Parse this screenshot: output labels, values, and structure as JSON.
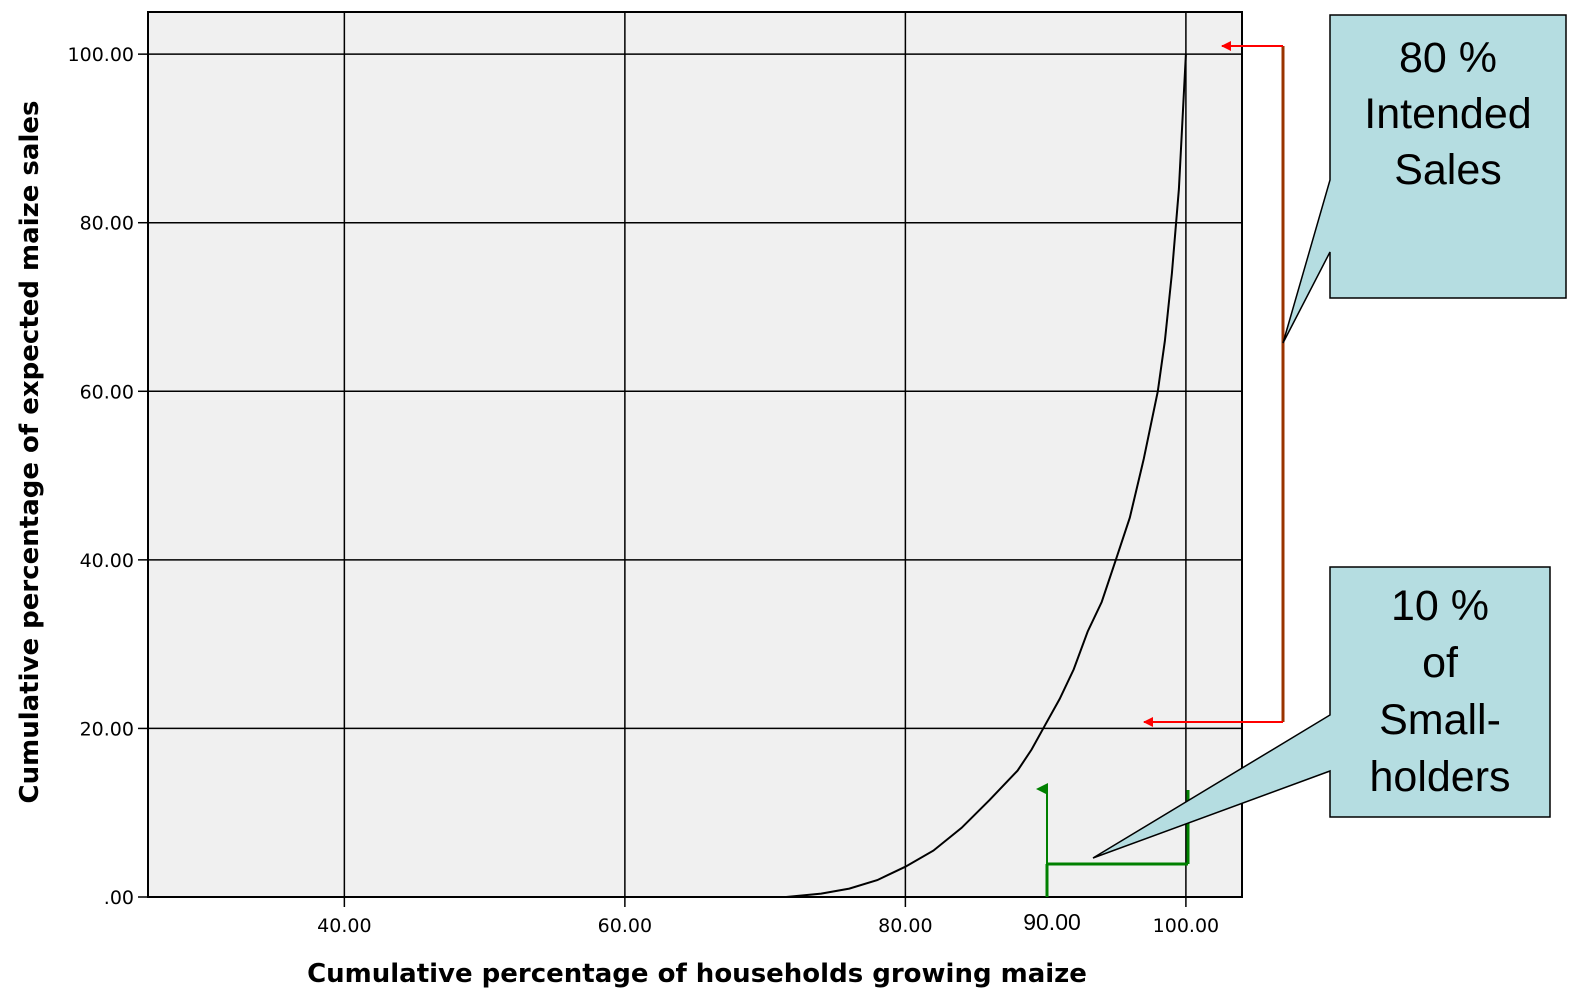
{
  "chart_data": {
    "type": "line",
    "xlabel": "Cumulative percentage of households growing maize",
    "ylabel": "Cumulative percentage of expected maize sales",
    "xlim": [
      26,
      104
    ],
    "ylim": [
      0,
      105
    ],
    "x_ticks": [
      40,
      60,
      80,
      100
    ],
    "x_tick_labels": [
      "40.00",
      "60.00",
      "80.00",
      "100.00"
    ],
    "y_ticks": [
      0,
      20,
      40,
      60,
      80,
      100
    ],
    "y_tick_labels": [
      ".00",
      "20.00",
      "40.00",
      "60.00",
      "80.00",
      "100.00"
    ],
    "grid": true,
    "series": [
      {
        "x": [
          71.5,
          74,
          76,
          78,
          80,
          82,
          84,
          86,
          88,
          89,
          90,
          91,
          92,
          93,
          94,
          95,
          96,
          97,
          98,
          98.5,
          99,
          99.5,
          100
        ],
        "y": [
          0,
          0.4,
          1,
          2,
          3.6,
          5.5,
          8.2,
          11.5,
          15,
          17.5,
          20.5,
          23.5,
          27,
          31.5,
          35,
          40,
          45,
          52,
          60,
          66,
          74,
          84,
          100
        ]
      }
    ],
    "annotations": [
      {
        "text_lines": [
          "80 %",
          "Intended",
          "Sales"
        ],
        "bracket_y": [
          20,
          100
        ]
      },
      {
        "text_lines": [
          "10 %",
          "of",
          "Small-",
          "holders"
        ],
        "bracket_x": [
          90,
          100
        ]
      }
    ],
    "extra_x_tick": {
      "value": 90,
      "label": "90.00"
    }
  },
  "colors": {
    "plot_bg": "#f0f0f0",
    "callout_fill": "#b5dde1",
    "red_arrow": "#ff0000",
    "brown_bracket": "#993300",
    "green_bracket": "#008000"
  }
}
